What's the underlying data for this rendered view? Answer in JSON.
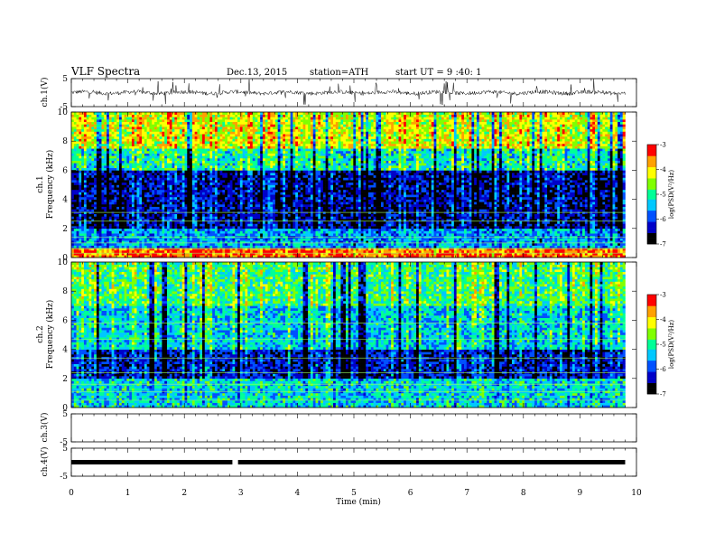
{
  "header": {
    "title": "VLF Spectra",
    "date": "Dec.13, 2015",
    "station": "station=ATH",
    "start": "start UT = 9 :40: 1"
  },
  "chart_data": [
    {
      "type": "line",
      "name": "ch1-waveform",
      "ylabel": "ch.1(V)",
      "ylim": [
        -5,
        5
      ],
      "yticks": [
        "5",
        "-5"
      ],
      "xlim": [
        0,
        10
      ],
      "baseline": 0,
      "note_level": "noisy signal around 0 V with spikes"
    },
    {
      "type": "heatmap",
      "name": "ch1-spectrogram",
      "ylabel": "ch.1 Frequency (kHz)",
      "ylim": [
        0,
        10
      ],
      "yticks": [
        "0",
        "2",
        "4",
        "6",
        "8",
        "10"
      ],
      "xlim": [
        0,
        9.8
      ],
      "colorbar": {
        "label": "log(PSD(V²/Hz)",
        "ticks": [
          "-3",
          "-4",
          "-5",
          "-6",
          "-7"
        ],
        "range": [
          -7,
          -3
        ]
      },
      "bands": [
        {
          "from": 0,
          "to": 0.6,
          "level": -3.5
        },
        {
          "from": 0.6,
          "to": 2.0,
          "level": -5.6
        },
        {
          "from": 2.0,
          "to": 6.0,
          "level": -6.5
        },
        {
          "from": 6.0,
          "to": 7.5,
          "level": -5.2
        },
        {
          "from": 7.5,
          "to": 10,
          "level": -4.3
        }
      ]
    },
    {
      "type": "heatmap",
      "name": "ch2-spectrogram",
      "ylabel": "ch.2 Frequency (kHz)",
      "ylim": [
        0,
        10
      ],
      "yticks": [
        "0",
        "2",
        "4",
        "6",
        "8",
        "10"
      ],
      "xlim": [
        0,
        9.8
      ],
      "colorbar": {
        "label": "log(PSD(V²/Hz)",
        "ticks": [
          "-3",
          "-4",
          "-5",
          "-6",
          "-7"
        ],
        "range": [
          -7,
          -3
        ]
      },
      "bands": [
        {
          "from": 0,
          "to": 2.0,
          "level": -5.3
        },
        {
          "from": 2.0,
          "to": 4.0,
          "level": -6.3
        },
        {
          "from": 4.0,
          "to": 7.0,
          "level": -5.4
        },
        {
          "from": 7.0,
          "to": 10,
          "level": -4.9
        }
      ]
    },
    {
      "type": "line",
      "name": "ch3-waveform",
      "ylabel": "ch.3(V)",
      "ylim": [
        -5,
        5
      ],
      "yticks": [
        "5",
        "-5"
      ],
      "xlim": [
        0,
        10
      ]
    },
    {
      "type": "line",
      "name": "ch4-waveform",
      "ylabel": "ch.4(V)",
      "ylim": [
        -5,
        5
      ],
      "yticks": [
        "5",
        "-5"
      ],
      "xlim": [
        0,
        10
      ],
      "baseline": 0
    }
  ],
  "xaxis": {
    "label": "Time (min)",
    "ticks": [
      "0",
      "1",
      "2",
      "3",
      "4",
      "5",
      "6",
      "7",
      "8",
      "9",
      "10"
    ],
    "range": [
      0,
      10
    ]
  },
  "colors": {
    "scale": [
      "#000000",
      "#0000c8",
      "#0050ff",
      "#00c8ff",
      "#00ff96",
      "#80ff00",
      "#ffff00",
      "#ffa000",
      "#ff0000",
      "#ffffff"
    ]
  }
}
